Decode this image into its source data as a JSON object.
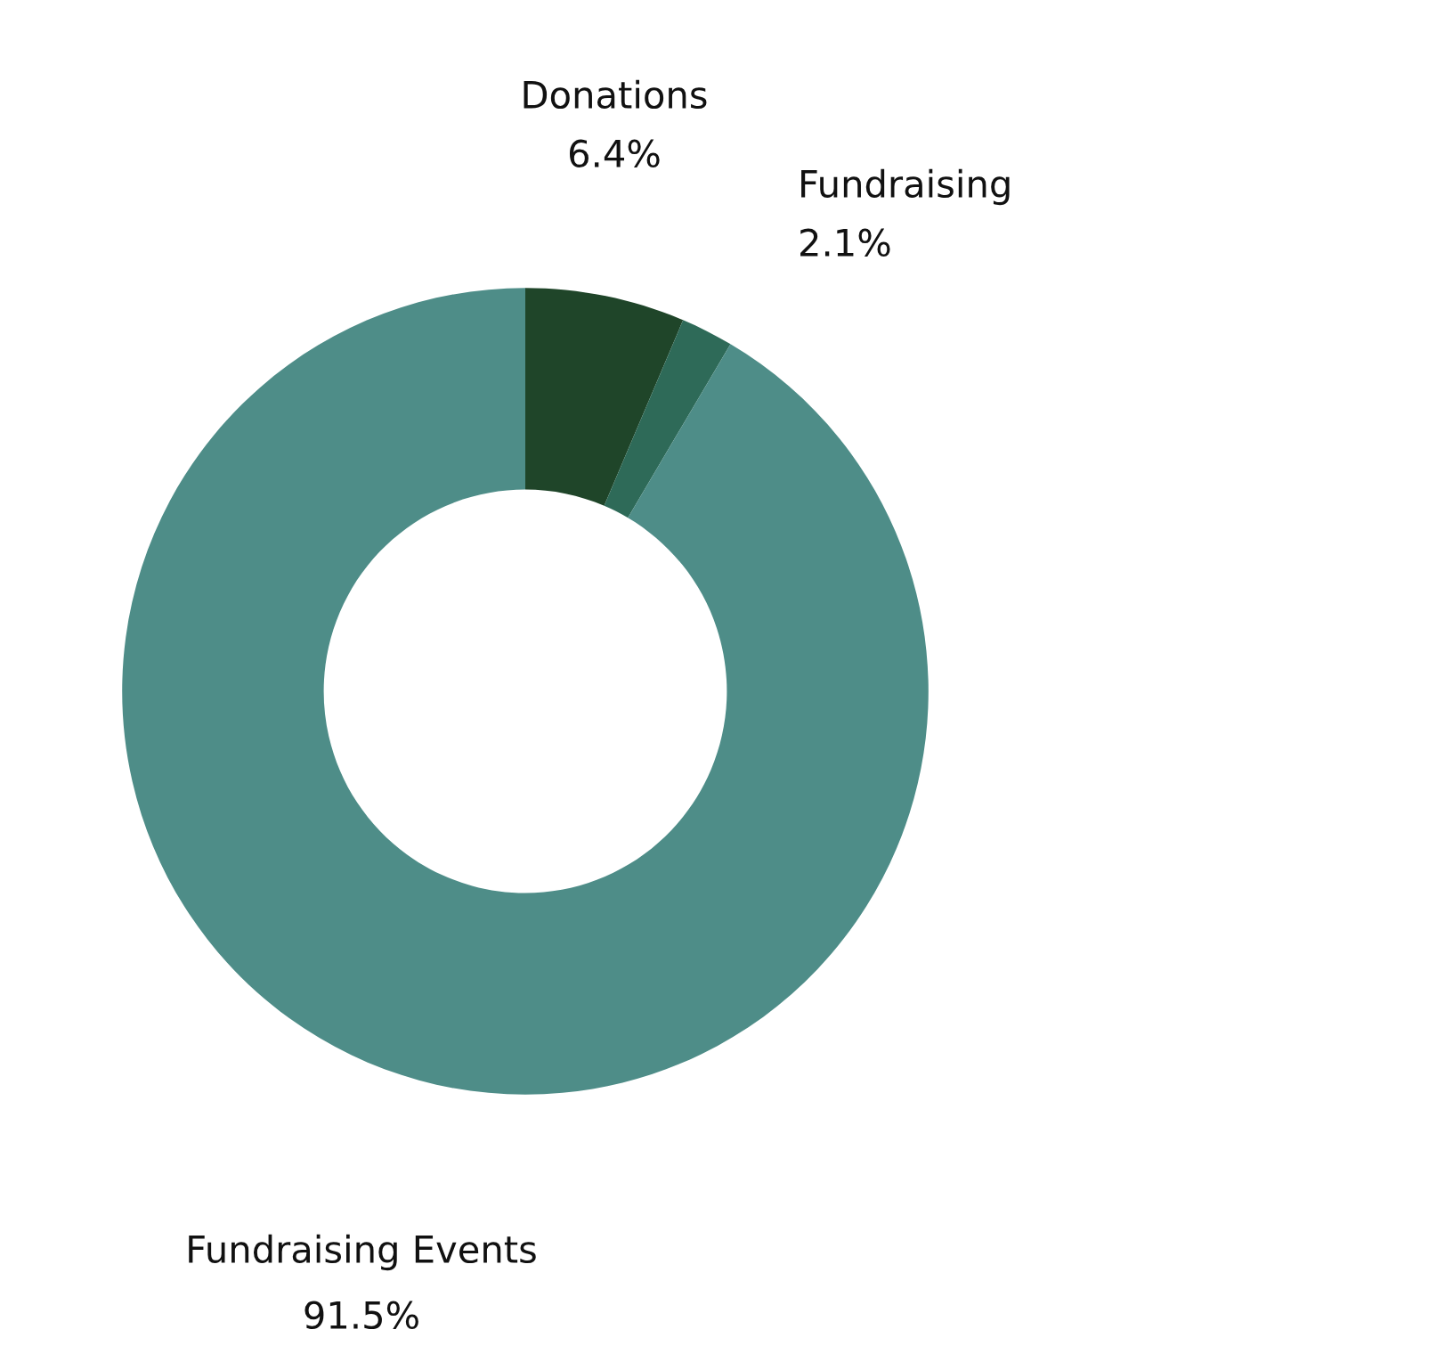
{
  "chart_data": {
    "type": "donut",
    "categories": [
      "Donations",
      "Fundraising",
      "Fundraising Events"
    ],
    "values": [
      6.4,
      2.1,
      91.5
    ],
    "colors": [
      "#1f4529",
      "#2e6a58",
      "#4e8d88"
    ],
    "value_labels": [
      "6.4%",
      "2.1%",
      "91.5%"
    ],
    "legend": false
  }
}
